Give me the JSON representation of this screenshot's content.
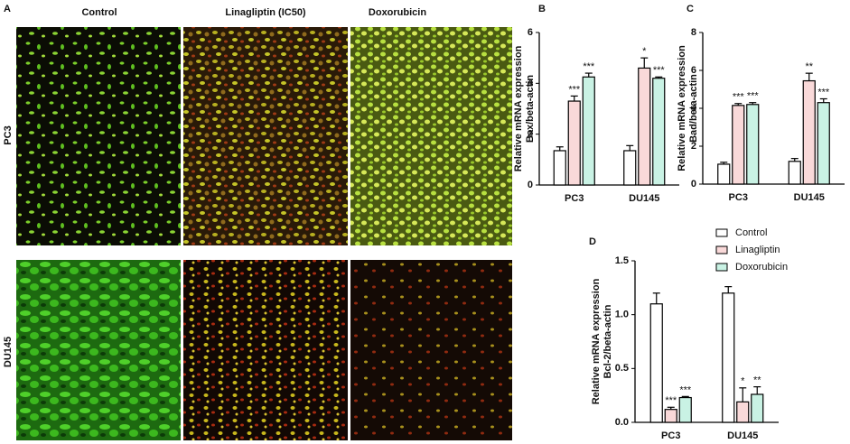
{
  "figure": {
    "panel": "A",
    "columns": [
      "Control",
      "Linagliptin (IC50)",
      "Doxorubicin"
    ],
    "rows": [
      "PC3",
      "DU145"
    ]
  },
  "chart_data": [
    {
      "type": "bar",
      "panel": "B",
      "ylabel": [
        "Relative mRNA expression",
        "Bax/beta-actin"
      ],
      "categories": [
        "PC3",
        "DU145"
      ],
      "ylim": [
        0,
        6
      ],
      "yticks": [
        0,
        2,
        4,
        6
      ],
      "series": [
        {
          "color": "#ffffff",
          "values": [
            1.35,
            1.35
          ],
          "errors": [
            0.15,
            0.2
          ],
          "labels": [
            null,
            null
          ]
        },
        {
          "color": "#f9d9d9",
          "values": [
            3.3,
            4.6
          ],
          "errors": [
            0.2,
            0.4
          ],
          "labels": [
            "***",
            "*"
          ]
        },
        {
          "color": "#c9f2e4",
          "values": [
            4.25,
            4.2
          ],
          "errors": [
            0.15,
            0.05
          ],
          "labels": [
            "***",
            "***"
          ]
        }
      ]
    },
    {
      "type": "bar",
      "panel": "C",
      "ylabel": [
        "Relative mRNA expression",
        "Bad/beta-actin"
      ],
      "categories": [
        "PC3",
        "DU145"
      ],
      "ylim": [
        0,
        8
      ],
      "yticks": [
        0,
        2,
        4,
        6,
        8
      ],
      "series": [
        {
          "color": "#ffffff",
          "values": [
            1.05,
            1.2
          ],
          "errors": [
            0.1,
            0.15
          ],
          "labels": [
            null,
            null
          ]
        },
        {
          "color": "#f9d9d9",
          "values": [
            4.15,
            5.45
          ],
          "errors": [
            0.1,
            0.4
          ],
          "labels": [
            "***",
            "**"
          ]
        },
        {
          "color": "#c9f2e4",
          "values": [
            4.2,
            4.3
          ],
          "errors": [
            0.1,
            0.2
          ],
          "labels": [
            "***",
            "***"
          ]
        }
      ]
    },
    {
      "type": "bar",
      "panel": "D",
      "ylabel": [
        "Relative mRNA expression",
        "Bcl-2/beta-actin"
      ],
      "categories": [
        "PC3",
        "DU145"
      ],
      "ylim": [
        0,
        1.5
      ],
      "yticks": [
        {
          "value": 0,
          "label": "0.0"
        },
        0.5,
        {
          "value": 1,
          "label": "1.0"
        },
        1.5
      ],
      "legend": "right",
      "series": [
        {
          "name": "Control",
          "color": "#ffffff",
          "values": [
            1.1,
            1.2
          ],
          "errors": [
            0.1,
            0.06
          ],
          "labels": [
            null,
            null
          ]
        },
        {
          "name": "Linagliptin",
          "color": "#f9d9d9",
          "values": [
            0.12,
            0.19
          ],
          "errors": [
            0.02,
            0.13
          ],
          "labels": [
            "***",
            "*"
          ]
        },
        {
          "name": "Doxorubicin",
          "color": "#c9f2e4",
          "values": [
            0.23,
            0.26
          ],
          "errors": [
            0.01,
            0.07
          ],
          "labels": [
            "***",
            "**"
          ]
        }
      ]
    }
  ]
}
